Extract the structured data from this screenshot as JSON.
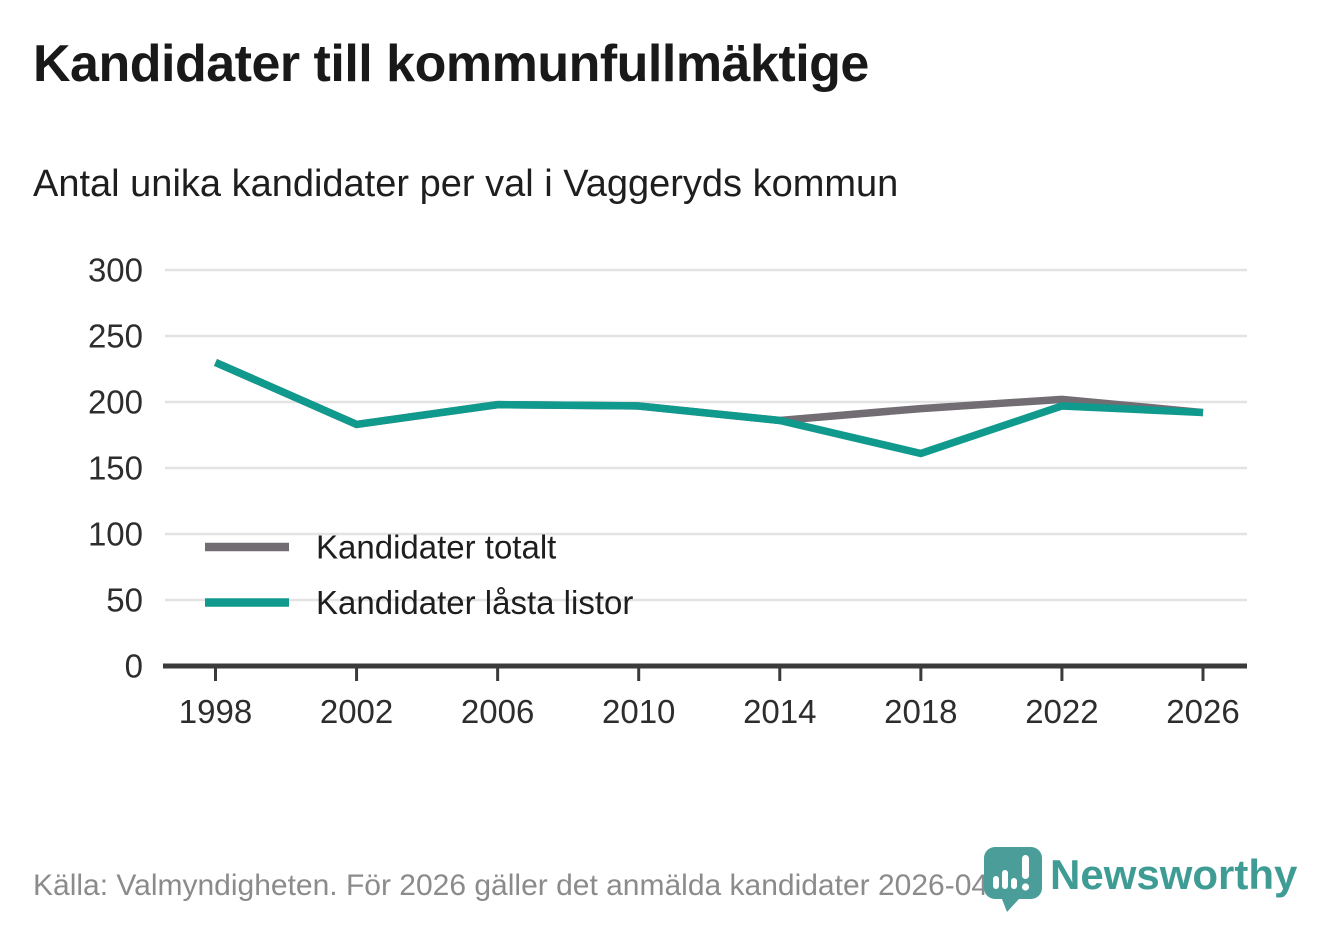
{
  "header": {
    "title": "Kandidater till kommunfullmäktige",
    "subtitle": "Antal unika kandidater per val i Vaggeryds kommun"
  },
  "chart_data": {
    "type": "line",
    "title": "Kandidater till kommunfullmäktige",
    "subtitle": "Antal unika kandidater per val i Vaggeryds kommun",
    "x": [
      "1998",
      "2002",
      "2006",
      "2010",
      "2014",
      "2018",
      "2022",
      "2026"
    ],
    "series": [
      {
        "name": "Kandidater totalt",
        "color": "#716d73",
        "values": [
          230,
          183,
          198,
          197,
          186,
          195,
          202,
          192
        ]
      },
      {
        "name": "Kandidater låsta listor",
        "color": "#109a8d",
        "values": [
          230,
          183,
          198,
          197,
          186,
          161,
          197,
          192
        ]
      }
    ],
    "ylim": [
      0,
      300
    ],
    "yticks": [
      0,
      50,
      100,
      150,
      200,
      250,
      300
    ],
    "grid": "horizontal",
    "legend_position": "inside-left"
  },
  "footer": {
    "source": "Källa: Valmyndigheten. För 2026 gäller det anmälda kandidater 2026-04-10.",
    "logo_text": "Newsworthy"
  },
  "colors": {
    "series_total": "#716d73",
    "series_locked": "#109a8d",
    "logo_teal": "#4a9d99",
    "grid": "#e3e3e3",
    "axis": "#3b3b3b",
    "tick_label": "#2d2d2d",
    "source_text": "#8b8b8b"
  }
}
